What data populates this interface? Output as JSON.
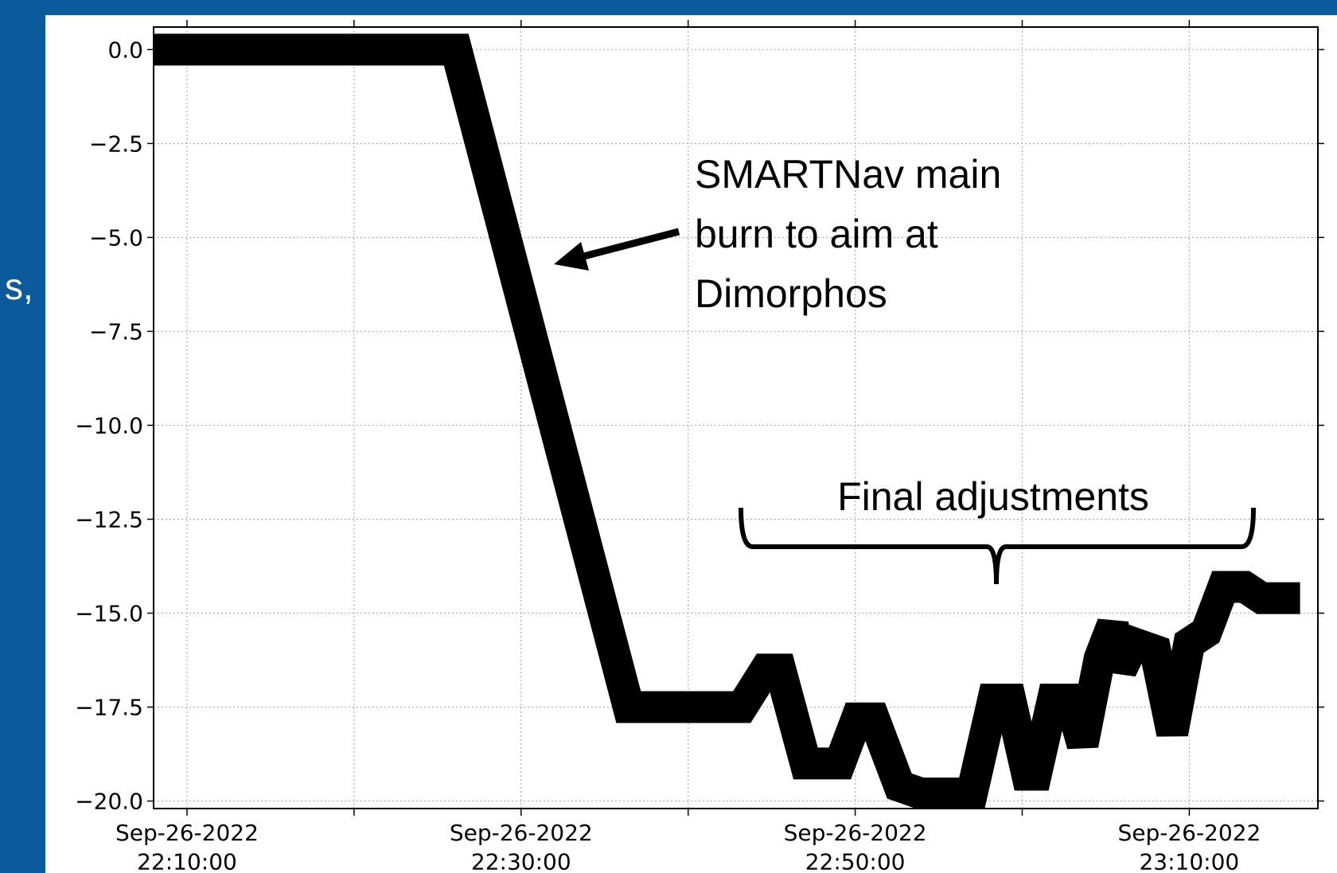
{
  "side_text": "s,",
  "chart_data": {
    "type": "line",
    "x": [
      "2022-09-26T22:08:00",
      "2022-09-26T22:26:07",
      "2022-09-26T22:36:26",
      "2022-09-26T22:43:13",
      "2022-09-26T22:44:38",
      "2022-09-26T22:45:31",
      "2022-09-26T22:47:02",
      "2022-09-26T22:49:05",
      "2022-09-26T22:50:06",
      "2022-09-26T22:51:07",
      "2022-09-26T22:52:39",
      "2022-09-26T22:53:56",
      "2022-09-26T22:56:59",
      "2022-09-26T22:58:16",
      "2022-09-26T22:59:17",
      "2022-09-26T23:00:18",
      "2022-09-26T23:00:49",
      "2022-09-26T23:01:50",
      "2022-09-26T23:02:51",
      "2022-09-26T23:03:37",
      "2022-09-26T23:04:38",
      "2022-09-26T23:05:25",
      "2022-09-26T23:05:55",
      "2022-09-26T23:06:41",
      "2022-09-26T23:07:58",
      "2022-09-26T23:08:59",
      "2022-09-26T23:10:00",
      "2022-09-26T23:11:01",
      "2022-09-26T23:12:02",
      "2022-09-26T23:13:19",
      "2022-09-26T23:14:20",
      "2022-09-26T23:16:38"
    ],
    "series": [
      {
        "color": "#000000",
        "values": [
          0,
          0,
          -17.5,
          -17.5,
          -16.5,
          -16.5,
          -19.0,
          -19.0,
          -17.8,
          -17.8,
          -19.6,
          -19.8,
          -19.8,
          -17.3,
          -17.3,
          -19.3,
          -19.3,
          -17.3,
          -17.3,
          -18.5,
          -16.2,
          -15.3,
          -16.5,
          -15.8,
          -16.0,
          -18.2,
          -15.8,
          -15.5,
          -14.3,
          -14.3,
          -14.6,
          -14.6
        ]
      }
    ],
    "xlim": [
      "2022-09-26T22:08:00",
      "2022-09-26T23:17:42"
    ],
    "xticks": [
      {
        "value": "2022-09-26T22:10:00",
        "label": "Sep-26-2022\n22:10:00"
      },
      {
        "value": "2022-09-26T22:30:00",
        "label": "Sep-26-2022\n22:30:00"
      },
      {
        "value": "2022-09-26T22:50:00",
        "label": "Sep-26-2022\n22:50:00"
      },
      {
        "value": "2022-09-26T23:10:00",
        "label": "Sep-26-2022\n23:10:00"
      }
    ],
    "xticks_minor": [
      "2022-09-26T22:20:00",
      "2022-09-26T22:40:00",
      "2022-09-26T23:00:00"
    ],
    "ylim": [
      -20.2,
      0.6
    ],
    "yticks": [
      {
        "value": 0,
        "label": "0.0"
      },
      {
        "value": -2.5,
        "label": "−2.5"
      },
      {
        "value": -5,
        "label": "−5.0"
      },
      {
        "value": -7.5,
        "label": "−7.5"
      },
      {
        "value": -10,
        "label": "−10.0"
      },
      {
        "value": -12.5,
        "label": "−12.5"
      },
      {
        "value": -15,
        "label": "−15.0"
      },
      {
        "value": -17.5,
        "label": "−17.5"
      },
      {
        "value": -20,
        "label": "−20.0"
      }
    ],
    "grid": true,
    "annotations": [
      {
        "text": "SMARTNav main\nburn to aim at\nDimorphos"
      },
      {
        "text": "Final adjustments"
      }
    ]
  }
}
